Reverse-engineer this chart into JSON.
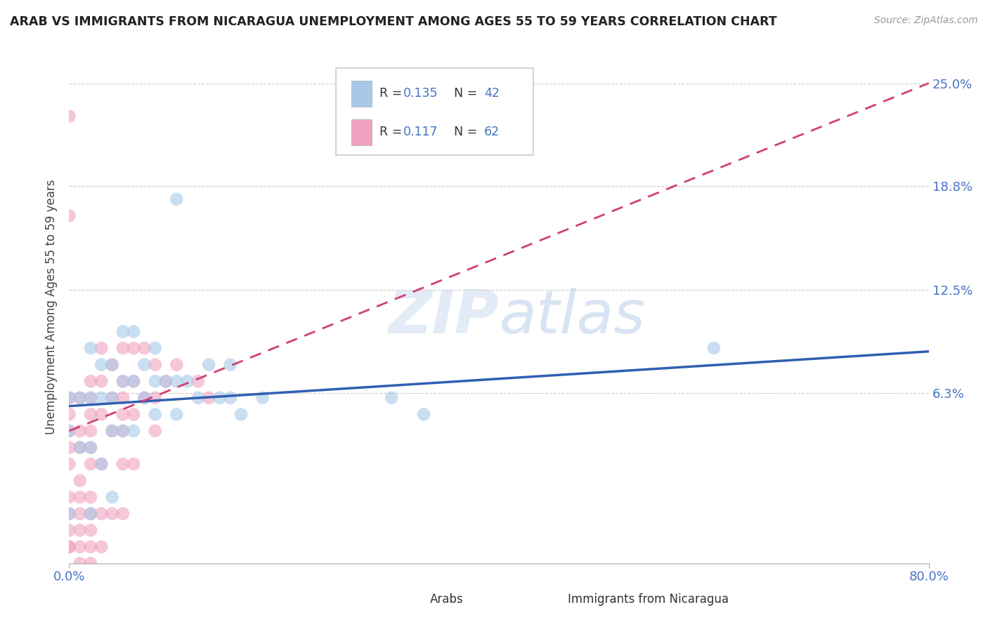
{
  "title": "ARAB VS IMMIGRANTS FROM NICARAGUA UNEMPLOYMENT AMONG AGES 55 TO 59 YEARS CORRELATION CHART",
  "source": "Source: ZipAtlas.com",
  "ylabel": "Unemployment Among Ages 55 to 59 years",
  "xlim": [
    0.0,
    0.8
  ],
  "ylim": [
    -0.04,
    0.27
  ],
  "xticklabels": [
    "0.0%",
    "80.0%"
  ],
  "xtick_vals": [
    0.0,
    0.8
  ],
  "ytick_positions": [
    0.063,
    0.125,
    0.188,
    0.25
  ],
  "ytick_labels": [
    "6.3%",
    "12.5%",
    "18.8%",
    "25.0%"
  ],
  "legend_r1": "R = 0.135",
  "legend_n1": "N = 42",
  "legend_r2": "R =  0.117",
  "legend_n2": "N = 62",
  "series1_name": "Arabs",
  "series2_name": "Immigrants from Nicaragua",
  "color_blue": "#a8c8e8",
  "color_pink": "#f0a0c0",
  "color_trend_blue": "#3060b0",
  "color_trend_pink": "#d04070",
  "watermark": "ZIPatlas",
  "blue_trend_x": [
    0.0,
    0.8
  ],
  "blue_trend_y": [
    0.055,
    0.088
  ],
  "pink_trend_x": [
    0.0,
    0.8
  ],
  "pink_trend_y": [
    0.04,
    0.25
  ],
  "blue_scatter_x": [
    0.0,
    0.0,
    0.0,
    0.01,
    0.01,
    0.02,
    0.02,
    0.02,
    0.02,
    0.03,
    0.03,
    0.03,
    0.04,
    0.04,
    0.04,
    0.04,
    0.05,
    0.05,
    0.05,
    0.06,
    0.06,
    0.06,
    0.07,
    0.07,
    0.08,
    0.08,
    0.08,
    0.09,
    0.1,
    0.1,
    0.1,
    0.11,
    0.12,
    0.13,
    0.14,
    0.15,
    0.15,
    0.16,
    0.18,
    0.3,
    0.33,
    0.6
  ],
  "blue_scatter_y": [
    0.06,
    0.04,
    -0.01,
    0.06,
    0.03,
    0.09,
    0.06,
    0.03,
    -0.01,
    0.08,
    0.06,
    0.02,
    0.08,
    0.06,
    0.04,
    0.0,
    0.1,
    0.07,
    0.04,
    0.1,
    0.07,
    0.04,
    0.08,
    0.06,
    0.09,
    0.07,
    0.05,
    0.07,
    0.18,
    0.07,
    0.05,
    0.07,
    0.06,
    0.08,
    0.06,
    0.08,
    0.06,
    0.05,
    0.06,
    0.06,
    0.05,
    0.09
  ],
  "pink_scatter_x": [
    0.0,
    0.0,
    0.0,
    0.0,
    0.0,
    0.0,
    0.0,
    0.0,
    0.0,
    0.0,
    0.0,
    0.0,
    0.01,
    0.01,
    0.01,
    0.01,
    0.01,
    0.01,
    0.01,
    0.01,
    0.01,
    0.02,
    0.02,
    0.02,
    0.02,
    0.02,
    0.02,
    0.02,
    0.02,
    0.02,
    0.02,
    0.02,
    0.03,
    0.03,
    0.03,
    0.03,
    0.03,
    0.03,
    0.04,
    0.04,
    0.04,
    0.04,
    0.05,
    0.05,
    0.05,
    0.05,
    0.05,
    0.05,
    0.05,
    0.06,
    0.06,
    0.06,
    0.06,
    0.07,
    0.07,
    0.08,
    0.08,
    0.08,
    0.09,
    0.1,
    0.12,
    0.13
  ],
  "pink_scatter_y": [
    0.06,
    0.05,
    0.04,
    0.03,
    0.02,
    0.0,
    -0.01,
    -0.02,
    -0.03,
    0.17,
    0.23,
    -0.03,
    0.06,
    0.04,
    0.03,
    0.01,
    0.0,
    -0.01,
    -0.02,
    -0.03,
    -0.04,
    0.07,
    0.06,
    0.05,
    0.04,
    0.03,
    0.02,
    0.0,
    -0.01,
    -0.02,
    -0.03,
    -0.04,
    0.09,
    0.07,
    0.05,
    0.02,
    -0.01,
    -0.03,
    0.08,
    0.06,
    0.04,
    -0.01,
    0.09,
    0.07,
    0.06,
    0.05,
    0.04,
    0.02,
    -0.01,
    0.09,
    0.07,
    0.05,
    0.02,
    0.09,
    0.06,
    0.08,
    0.06,
    0.04,
    0.07,
    0.08,
    0.07,
    0.06
  ]
}
